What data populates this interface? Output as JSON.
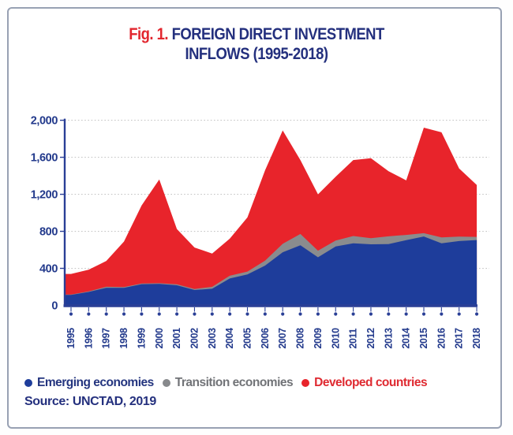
{
  "figure": {
    "label": "Fig. 1.",
    "title_line1": "FOREIGN DIRECT INVESTMENT",
    "title_line2": "INFLOWS (1995-2018)"
  },
  "legend": {
    "items": [
      {
        "label": "Emerging economies",
        "dot_color": "#1e3d9b",
        "text_color": "#24357f"
      },
      {
        "label": "Transition economies",
        "dot_color": "#87898c",
        "text_color": "#717377"
      },
      {
        "label": "Developed countries",
        "dot_color": "#e8242b",
        "text_color": "#df2a31"
      }
    ]
  },
  "source": "Source: UNCTAD, 2019",
  "colors": {
    "navy_text": "#233a8c",
    "axis": "#2a3f96",
    "grid": "#c6c6c6",
    "card_border": "#98a1b3",
    "title_red": "#e2262e",
    "title_navy": "#24307e"
  },
  "chart_data": {
    "type": "area",
    "stacked": true,
    "title": "Foreign Direct Investment Inflows (1995-2018)",
    "xlabel": "",
    "ylabel": "",
    "x": [
      "1995",
      "1996",
      "1997",
      "1998",
      "1999",
      "2000",
      "2001",
      "2002",
      "2003",
      "2004",
      "2005",
      "2006",
      "2007",
      "2008",
      "2009",
      "2010",
      "2011",
      "2012",
      "2013",
      "2014",
      "2015",
      "2016",
      "2017",
      "2018"
    ],
    "series": [
      {
        "name": "Emerging economies",
        "color": "#1e3d9b",
        "values": [
          113,
          145,
          190,
          190,
          229,
          232,
          217,
          166,
          180,
          290,
          334,
          430,
          574,
          650,
          519,
          637,
          670,
          660,
          662,
          704,
          744,
          670,
          695,
          706
        ]
      },
      {
        "name": "Transition economies",
        "color": "#8a8c8e",
        "values": [
          4,
          6,
          11,
          8,
          8,
          7,
          10,
          11,
          20,
          30,
          31,
          54,
          91,
          121,
          72,
          64,
          79,
          65,
          84,
          57,
          36,
          64,
          48,
          34
        ]
      },
      {
        "name": "Developed countries",
        "color": "#e8242b",
        "values": [
          223,
          234,
          279,
          492,
          843,
          1121,
          598,
          448,
          360,
          400,
          585,
          976,
          1225,
          799,
          609,
          689,
          821,
          865,
          704,
          589,
          1140,
          1136,
          737,
          560
        ]
      }
    ],
    "totals": [
      340,
      385,
      480,
      690,
      1080,
      1360,
      825,
      625,
      560,
      720,
      950,
      1460,
      1890,
      1570,
      1200,
      1390,
      1570,
      1590,
      1450,
      1350,
      1920,
      1870,
      1480,
      1300
    ],
    "ylim": [
      0,
      2000
    ],
    "yticks": [
      0,
      400,
      800,
      1200,
      1600,
      2000
    ],
    "ytick_labels": [
      "0",
      "400",
      "800",
      "1,200",
      "1,600",
      "2,000"
    ],
    "grid": "horizontal dotted",
    "legend_position": "bottom"
  }
}
